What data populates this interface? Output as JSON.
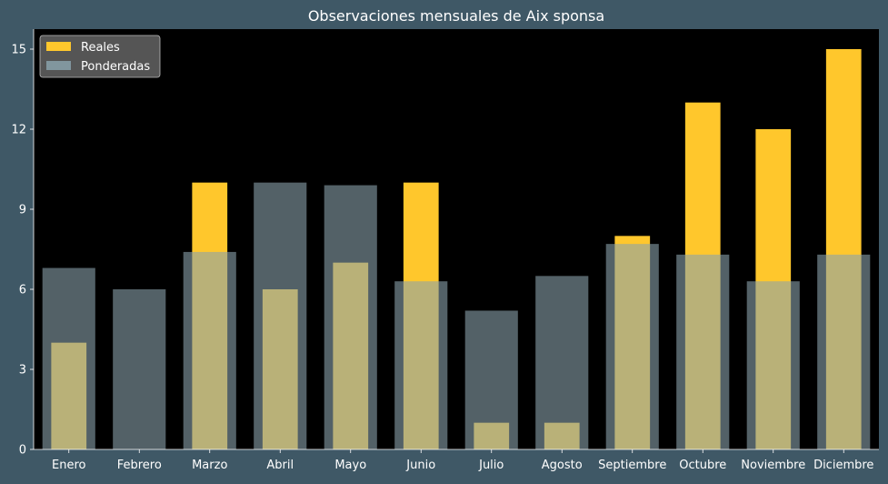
{
  "chart_data": {
    "type": "bar",
    "title": "Observaciones mensuales de Aix sponsa",
    "xlabel": "",
    "ylabel": "",
    "categories": [
      "Enero",
      "Febrero",
      "Marzo",
      "Abril",
      "Mayo",
      "Junio",
      "Julio",
      "Agosto",
      "Septiembre",
      "Octubre",
      "Noviembre",
      "Diciembre"
    ],
    "series": [
      {
        "name": "Reales",
        "values": [
          4,
          0,
          10,
          6,
          7,
          10,
          1,
          1,
          8,
          13,
          12,
          15
        ]
      },
      {
        "name": "Ponderadas",
        "values": [
          6.8,
          6.0,
          7.4,
          10.0,
          9.9,
          6.3,
          5.2,
          6.5,
          7.7,
          7.3,
          6.3,
          7.3
        ]
      }
    ],
    "yticks": [
      0,
      3,
      6,
      9,
      12,
      15
    ],
    "ylim": [
      0,
      15.75
    ],
    "legend_position": "top-left",
    "grid": false,
    "colors": {
      "background": "#3f5866",
      "plot_background": "#000000",
      "reales": "#ffc72c",
      "ponderadas": "#8aa2ac",
      "ponderadas_opacity": 0.6,
      "text": "#ffffff"
    }
  }
}
